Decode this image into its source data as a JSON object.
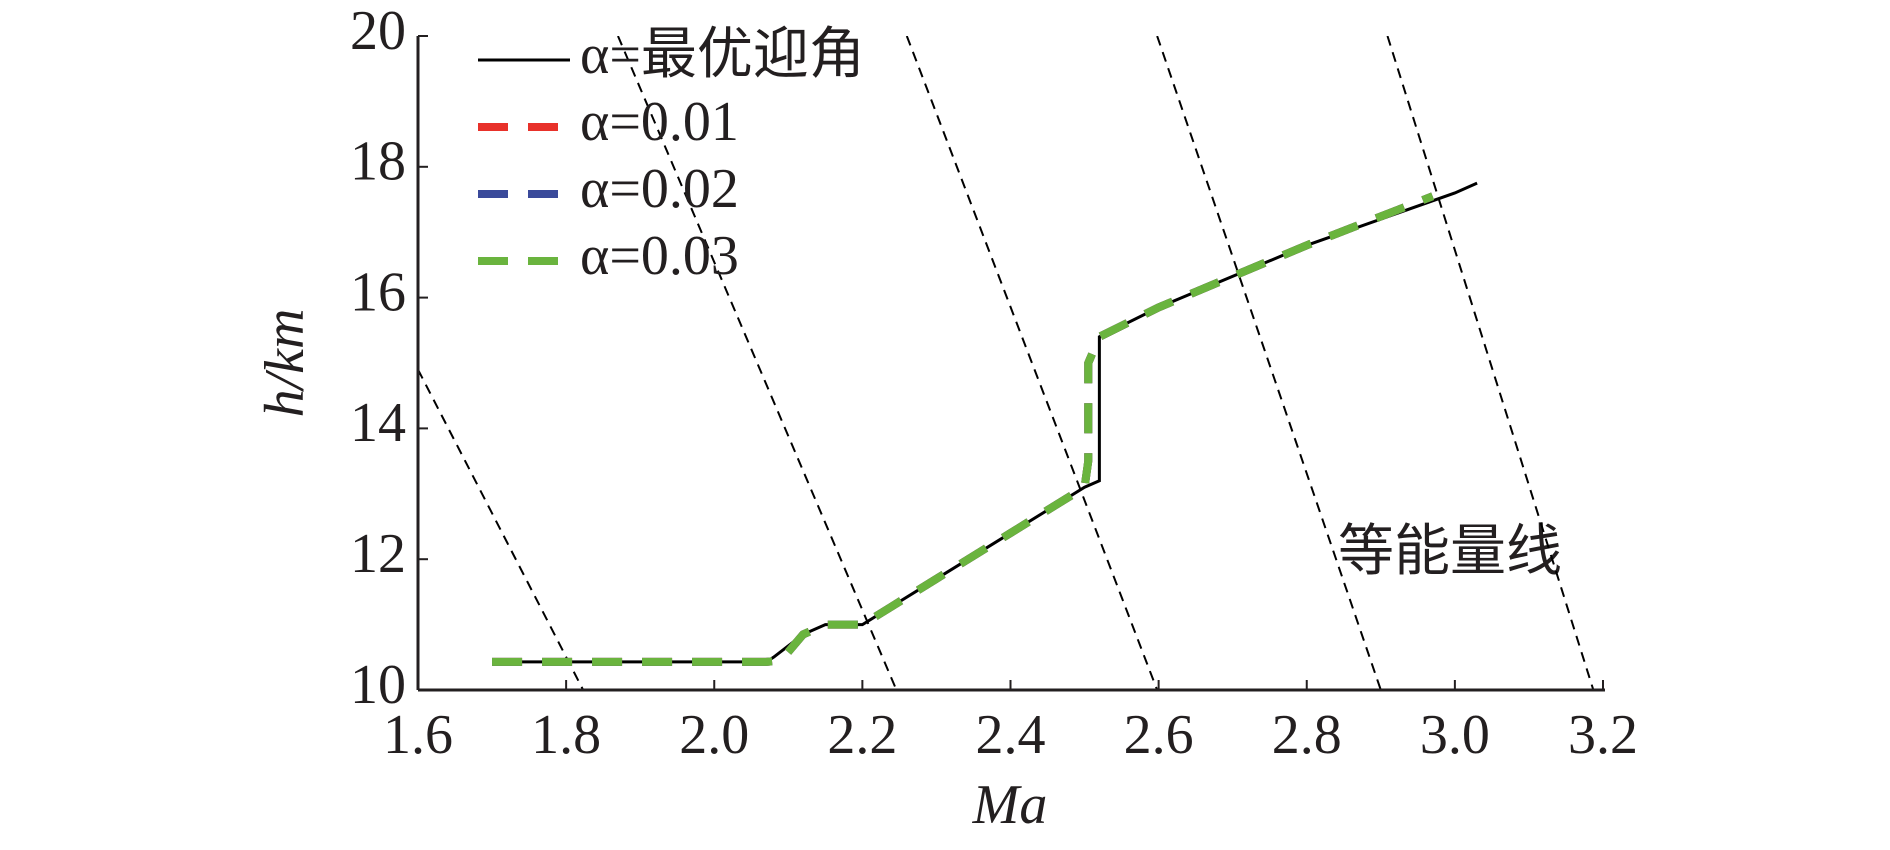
{
  "chart_data": {
    "type": "line",
    "xlabel": "Ma",
    "ylabel": "h/km",
    "annotation": "等能量线",
    "xlim": [
      1.6,
      3.2
    ],
    "ylim": [
      10,
      20
    ],
    "xticks": [
      1.6,
      1.8,
      {
        "value": 2,
        "label": "2.0"
      },
      2.2,
      2.4,
      2.6,
      2.8,
      {
        "value": 3,
        "label": "3.0"
      },
      3.2
    ],
    "yticks": [
      10,
      12,
      14,
      16,
      18,
      20
    ],
    "legend": "upper left",
    "series": [
      {
        "name": "α=最优迎角",
        "color": "#000000",
        "style": "solid",
        "x": [
          1.7,
          2.07,
          2.08,
          2.12,
          2.15,
          2.2,
          2.3,
          2.4,
          2.5,
          2.52,
          2.52,
          2.6,
          2.8,
          3.0,
          3.03
        ],
        "values": [
          10.43,
          10.43,
          10.5,
          10.85,
          11.0,
          11.0,
          11.7,
          12.4,
          13.1,
          13.2,
          15.4,
          15.85,
          16.8,
          17.6,
          17.75
        ]
      },
      {
        "name": "α=0.01",
        "color": "#e8312a",
        "style": "dashed",
        "x": [
          1.7,
          2.07,
          2.09,
          2.12,
          2.15,
          2.2,
          2.3,
          2.4,
          2.5,
          2.505,
          2.505,
          2.52,
          2.6,
          2.8,
          2.97
        ],
        "values": [
          10.43,
          10.43,
          10.45,
          10.85,
          11.0,
          11.0,
          11.7,
          12.4,
          13.1,
          13.5,
          15.0,
          15.4,
          15.85,
          16.8,
          17.55
        ]
      },
      {
        "name": "α=0.02",
        "color": "#3a4a9a",
        "style": "dashed",
        "x": [
          1.7,
          2.07,
          2.09,
          2.12,
          2.15,
          2.2,
          2.3,
          2.4,
          2.5,
          2.505,
          2.505,
          2.52,
          2.6,
          2.8,
          2.97
        ],
        "values": [
          10.43,
          10.43,
          10.45,
          10.85,
          11.0,
          11.0,
          11.7,
          12.4,
          13.1,
          13.5,
          15.0,
          15.4,
          15.85,
          16.8,
          17.55
        ]
      },
      {
        "name": "α=0.03",
        "color": "#6ab43e",
        "style": "dashed",
        "x": [
          1.7,
          2.07,
          2.09,
          2.12,
          2.15,
          2.2,
          2.3,
          2.4,
          2.5,
          2.505,
          2.505,
          2.52,
          2.6,
          2.8,
          2.97
        ],
        "values": [
          10.43,
          10.43,
          10.45,
          10.85,
          11.0,
          11.0,
          11.7,
          12.4,
          13.1,
          13.5,
          15.0,
          15.4,
          15.85,
          16.8,
          17.55
        ]
      }
    ],
    "energy_lines": [
      {
        "x": [
          1.6,
          1.823
        ],
        "values": [
          14.9,
          10
        ]
      },
      {
        "x": [
          1.87,
          2.246
        ],
        "values": [
          20,
          10
        ]
      },
      {
        "x": [
          2.26,
          2.598
        ],
        "values": [
          20,
          10
        ]
      },
      {
        "x": [
          2.598,
          2.9
        ],
        "values": [
          20,
          10
        ]
      },
      {
        "x": [
          2.909,
          3.187
        ],
        "values": [
          20,
          10
        ]
      }
    ]
  }
}
